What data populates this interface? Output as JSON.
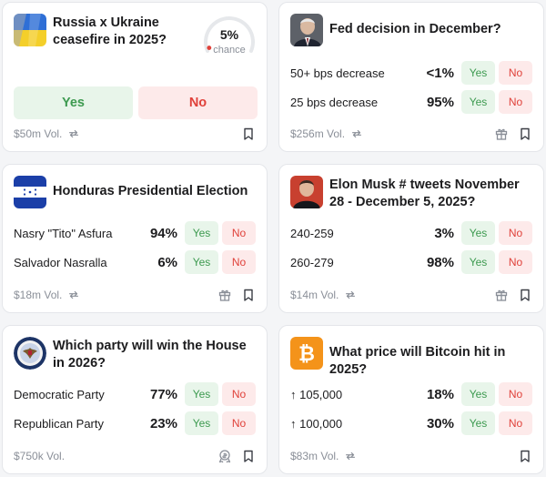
{
  "colors": {
    "yes_bg": "#e8f5ea",
    "yes_text": "#3d9a50",
    "no_bg": "#fdeaea",
    "no_text": "#e0413a",
    "muted": "#8a8f98"
  },
  "cards": [
    {
      "title": "Russia x Ukraine ceasefire in 2025?",
      "chance_value": "5%",
      "chance_label": "chance",
      "chance_fraction": 0.05,
      "yes": "Yes",
      "no": "No",
      "volume": "$50m Vol.",
      "icons": [
        "ukraine-flag-icon",
        "repeat-icon",
        "bookmark-icon"
      ]
    },
    {
      "title": "Fed decision in December?",
      "outcomes": [
        {
          "label": "50+ bps decrease",
          "pct": "<1%",
          "yes": "Yes",
          "no": "No"
        },
        {
          "label": "25 bps decrease",
          "pct": "95%",
          "yes": "Yes",
          "no": "No"
        }
      ],
      "volume": "$256m Vol.",
      "icons": [
        "fed-chair-portrait-icon",
        "repeat-icon",
        "gift-icon",
        "bookmark-icon"
      ]
    },
    {
      "title": "Honduras Presidential Election",
      "outcomes": [
        {
          "label": "Nasry \"Tito\" Asfura",
          "pct": "94%",
          "yes": "Yes",
          "no": "No"
        },
        {
          "label": "Salvador Nasralla",
          "pct": "6%",
          "yes": "Yes",
          "no": "No"
        }
      ],
      "volume": "$18m Vol.",
      "icons": [
        "honduras-flag-icon",
        "repeat-icon",
        "gift-icon",
        "bookmark-icon"
      ]
    },
    {
      "title": "Elon Musk # tweets November 28 - December 5, 2025?",
      "outcomes": [
        {
          "label": "240-259",
          "pct": "3%",
          "yes": "Yes",
          "no": "No"
        },
        {
          "label": "260-279",
          "pct": "98%",
          "yes": "Yes",
          "no": "No"
        }
      ],
      "volume": "$14m Vol.",
      "icons": [
        "elon-musk-portrait-icon",
        "repeat-icon",
        "gift-icon",
        "bookmark-icon"
      ]
    },
    {
      "title": "Which party will win the House in 2026?",
      "outcomes": [
        {
          "label": "Democratic Party",
          "pct": "77%",
          "yes": "Yes",
          "no": "No"
        },
        {
          "label": "Republican Party",
          "pct": "23%",
          "yes": "Yes",
          "no": "No"
        }
      ],
      "volume": "$750k Vol.",
      "icons": [
        "house-seal-icon",
        "rewards-icon",
        "bookmark-icon"
      ]
    },
    {
      "title": "What price will Bitcoin hit in 2025?",
      "outcomes": [
        {
          "label": "↑ 105,000",
          "pct": "18%",
          "yes": "Yes",
          "no": "No"
        },
        {
          "label": "↑ 100,000",
          "pct": "30%",
          "yes": "Yes",
          "no": "No"
        }
      ],
      "volume": "$83m Vol.",
      "icons": [
        "bitcoin-icon",
        "repeat-icon",
        "bookmark-icon"
      ]
    }
  ]
}
